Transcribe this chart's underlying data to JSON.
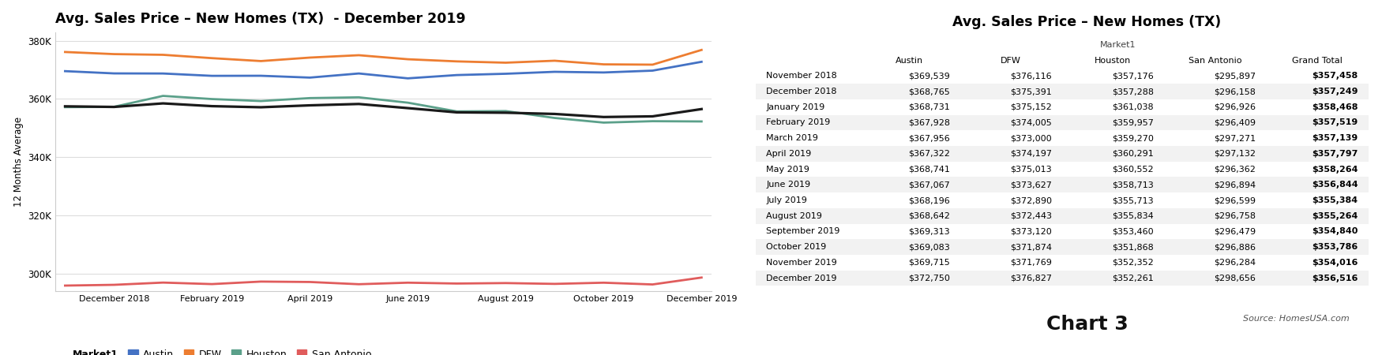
{
  "chart_title": "Avg. Sales Price – New Homes (TX)  - December 2019",
  "table_title": "Avg. Sales Price – New Homes (TX)",
  "ylabel": "12 Months Average",
  "months": [
    "November 2018",
    "December 2018",
    "January 2019",
    "February 2019",
    "March 2019",
    "April 2019",
    "May 2019",
    "June 2019",
    "July 2019",
    "August 2019",
    "September 2019",
    "October 2019",
    "November 2019",
    "December 2019"
  ],
  "austin": [
    369539,
    368765,
    368731,
    367928,
    367956,
    367322,
    368741,
    367067,
    368196,
    368642,
    369313,
    369083,
    369715,
    372750
  ],
  "dfw": [
    376116,
    375391,
    375152,
    374005,
    373000,
    374197,
    375013,
    373627,
    372890,
    372443,
    373120,
    371874,
    371769,
    376827
  ],
  "houston": [
    357176,
    357288,
    361038,
    359957,
    359270,
    360291,
    360552,
    358713,
    355713,
    355834,
    353460,
    351868,
    352352,
    352261
  ],
  "san_antonio": [
    295897,
    296158,
    296926,
    296409,
    297271,
    297132,
    296362,
    296894,
    296599,
    296758,
    296479,
    296886,
    296284,
    298656
  ],
  "grand_total": [
    357458,
    357249,
    358468,
    357519,
    357139,
    357797,
    358264,
    356844,
    355384,
    355264,
    354840,
    353786,
    354016,
    356516
  ],
  "line_colors": {
    "austin": "#4472C4",
    "dfw": "#ED7D31",
    "houston": "#5BA08A",
    "san_antonio": "#E05C5C",
    "grand_total": "#1A1A1A"
  },
  "x_tick_labels": [
    "December 2018",
    "February 2019",
    "April 2019",
    "June 2019",
    "August 2019",
    "October 2019",
    "December 2019"
  ],
  "x_tick_indices": [
    1,
    3,
    5,
    7,
    9,
    11,
    13
  ],
  "ylim": [
    294000,
    383000
  ],
  "yticks": [
    300000,
    320000,
    340000,
    360000,
    380000
  ],
  "ytick_labels": [
    "300K",
    "320K",
    "340K",
    "360K",
    "380K"
  ],
  "table_rows": [
    [
      "November 2018",
      "$369,539",
      "$376,116",
      "$357,176",
      "$295,897",
      "$357,458"
    ],
    [
      "December 2018",
      "$368,765",
      "$375,391",
      "$357,288",
      "$296,158",
      "$357,249"
    ],
    [
      "January 2019",
      "$368,731",
      "$375,152",
      "$361,038",
      "$296,926",
      "$358,468"
    ],
    [
      "February 2019",
      "$367,928",
      "$374,005",
      "$359,957",
      "$296,409",
      "$357,519"
    ],
    [
      "March 2019",
      "$367,956",
      "$373,000",
      "$359,270",
      "$297,271",
      "$357,139"
    ],
    [
      "April 2019",
      "$367,322",
      "$374,197",
      "$360,291",
      "$297,132",
      "$357,797"
    ],
    [
      "May 2019",
      "$368,741",
      "$375,013",
      "$360,552",
      "$296,362",
      "$358,264"
    ],
    [
      "June 2019",
      "$367,067",
      "$373,627",
      "$358,713",
      "$296,894",
      "$356,844"
    ],
    [
      "July 2019",
      "$368,196",
      "$372,890",
      "$355,713",
      "$296,599",
      "$355,384"
    ],
    [
      "August 2019",
      "$368,642",
      "$372,443",
      "$355,834",
      "$296,758",
      "$355,264"
    ],
    [
      "September 2019",
      "$369,313",
      "$373,120",
      "$353,460",
      "$296,479",
      "$354,840"
    ],
    [
      "October 2019",
      "$369,083",
      "$371,874",
      "$351,868",
      "$296,886",
      "$353,786"
    ],
    [
      "November 2019",
      "$369,715",
      "$371,769",
      "$352,352",
      "$296,284",
      "$354,016"
    ],
    [
      "December 2019",
      "$372,750",
      "$376,827",
      "$352,261",
      "$298,656",
      "$356,516"
    ]
  ],
  "col_headers": [
    "",
    "Austin",
    "DFW",
    "Houston",
    "San Antonio",
    "Grand Total"
  ],
  "market1_label": "Market1",
  "source_text": "Source: HomesUSA.com",
  "chart3_text": "Chart 3",
  "bg_color": "#FFFFFF",
  "row_odd_color": "#FFFFFF",
  "row_even_color": "#F2F2F2"
}
